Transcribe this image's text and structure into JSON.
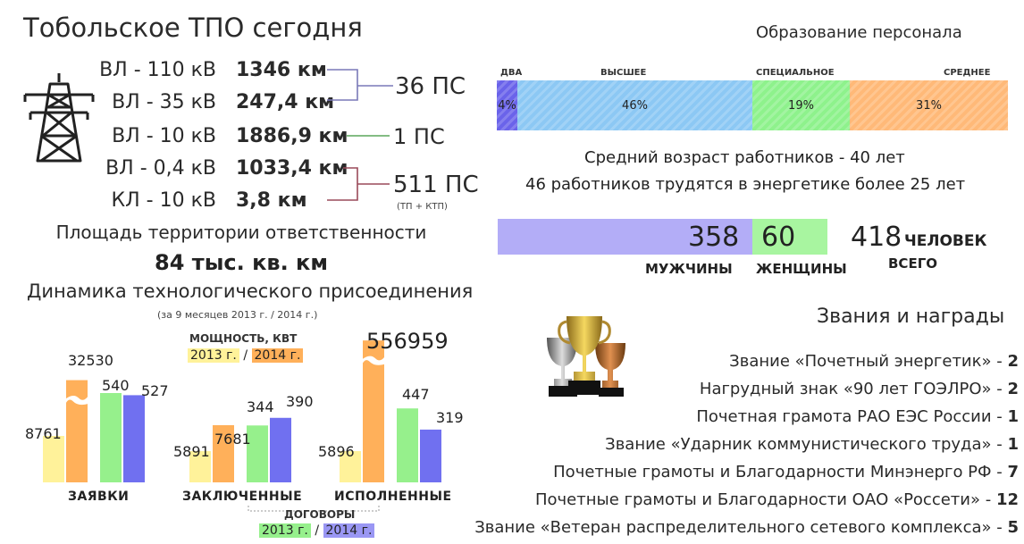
{
  "title": "Тобольское ТПО сегодня",
  "lines": [
    {
      "label": "ВЛ - 110 кВ",
      "value": "1346 км"
    },
    {
      "label": "ВЛ - 35 кВ",
      "value": "247,4 км"
    },
    {
      "label": "ВЛ - 10 кВ",
      "value": "1886,9 км"
    },
    {
      "label": "ВЛ - 0,4 кВ",
      "value": "1033,4 км"
    },
    {
      "label": "КЛ - 10 кВ",
      "value": "3,8 км"
    }
  ],
  "substations": {
    "ps36": "36 ПС",
    "ps1": "1 ПС",
    "ps511": "511 ПС",
    "ps511_note": "(ТП + КТП)"
  },
  "area": {
    "title": "Площадь территории ответственности",
    "value": "84 тыс. кв. км"
  },
  "dynamics": {
    "title": "Динамика технологического присоединения",
    "subtitle": "(за 9 месяцев 2013 г. / 2014 г.)",
    "power_label": "мощность, кВт",
    "power_2013": "2013 г.",
    "power_sep": "/",
    "power_2014": "2014 г.",
    "contracts_label": "договоры",
    "contracts_2013": "2013 г.",
    "contracts_sep": "/",
    "contracts_2014": "2014 г."
  },
  "chart_data": {
    "type": "bar",
    "categories": [
      "заявки",
      "заключенные",
      "исполненные"
    ],
    "series": [
      {
        "name": "мощность 2013 г.",
        "values": [
          8761,
          5891,
          5896
        ],
        "color": "#fff29a"
      },
      {
        "name": "мощность 2014 г.",
        "values": [
          32530,
          7681,
          556959
        ],
        "color": "#ffb05a"
      },
      {
        "name": "договоры 2013 г.",
        "values": [
          540,
          344,
          447
        ],
        "color": "#96f08c"
      },
      {
        "name": "договоры 2014 г.",
        "values": [
          527,
          390,
          319
        ],
        "color": "#7070f0"
      }
    ],
    "labels": {
      "p2013": [
        "8761",
        "5891",
        "5896"
      ],
      "p2014": [
        "32530",
        "7681",
        "556959"
      ],
      "d2013": [
        "540",
        "344",
        "447"
      ],
      "d2014": [
        "527",
        "390",
        "319"
      ]
    }
  },
  "education": {
    "title": "Образование персонала",
    "segments": [
      {
        "label": "два",
        "value": "4%",
        "pct": 4,
        "color": "#6a63ea"
      },
      {
        "label": "высшее",
        "value": "46%",
        "pct": 46,
        "color": "#8cc8f4"
      },
      {
        "label": "специальное",
        "value": "19%",
        "pct": 19,
        "color": "#8ef28c"
      },
      {
        "label": "среднее",
        "value": "31%",
        "pct": 31,
        "color": "#ffb978"
      }
    ]
  },
  "stats": {
    "avg_age": "Средний возраст работников - 40 лет",
    "veterans": "46 работников трудятся в энергетике более 25 лет"
  },
  "gender": {
    "men": "358",
    "women": "60",
    "total": "418",
    "total_word": "человек",
    "men_label": "мужчины",
    "women_label": "женщины",
    "total_label": "всего",
    "men_color": "#b3adf7",
    "women_color": "#a8f5a0"
  },
  "awards": {
    "title": "Звания и награды",
    "items": [
      {
        "text": "Звание «Почетный энергетик» - ",
        "count": "2"
      },
      {
        "text": "Нагрудный знак «90 лет  ГОЭЛРО» - ",
        "count": "2"
      },
      {
        "text": "Почетная грамота РАО ЕЭС России - ",
        "count": "1"
      },
      {
        "text": "Звание «Ударник коммунистического труда» - ",
        "count": "1"
      },
      {
        "text": "Почетные грамоты и Благодарности  Минэнерго РФ - ",
        "count": "7"
      },
      {
        "text": "Почетные грамоты и Благодарности ОАО «Россети» - ",
        "count": "12"
      },
      {
        "text": "Звание «Ветеран распределительного сетевого комплекса» - ",
        "count": "5"
      }
    ]
  },
  "icons": {
    "pylon": "power-pylon-icon",
    "trophies": "trophy-cups-icon"
  }
}
